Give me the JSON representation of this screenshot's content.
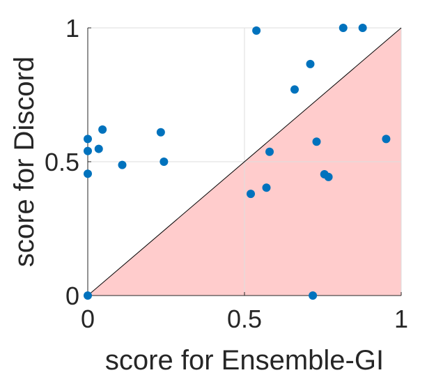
{
  "chart_data": {
    "type": "scatter",
    "xlabel": "score for Ensemble-GI",
    "ylabel": "score for Discord",
    "xlim": [
      0,
      1
    ],
    "ylim": [
      0,
      1
    ],
    "xticks": [
      "0",
      "0.5",
      "1"
    ],
    "yticks": [
      "0",
      "0.5",
      "1"
    ],
    "grid": true,
    "reference_line": "y = x",
    "shaded_region": "below diagonal (x > y)",
    "colors": {
      "points": "#0072BD",
      "shade": "#FFCCCC",
      "diagonal": "#000000",
      "grid": "#DEDEDE",
      "axis": "#262626"
    },
    "points": [
      {
        "x": 0.0,
        "y": 0.0
      },
      {
        "x": 0.0,
        "y": 0.455
      },
      {
        "x": 0.0,
        "y": 0.54
      },
      {
        "x": 0.0,
        "y": 0.585
      },
      {
        "x": 0.035,
        "y": 0.548
      },
      {
        "x": 0.047,
        "y": 0.62
      },
      {
        "x": 0.11,
        "y": 0.488
      },
      {
        "x": 0.233,
        "y": 0.61
      },
      {
        "x": 0.243,
        "y": 0.5
      },
      {
        "x": 0.52,
        "y": 0.38
      },
      {
        "x": 0.538,
        "y": 0.99
      },
      {
        "x": 0.57,
        "y": 0.403
      },
      {
        "x": 0.58,
        "y": 0.537
      },
      {
        "x": 0.66,
        "y": 0.77
      },
      {
        "x": 0.71,
        "y": 0.865
      },
      {
        "x": 0.718,
        "y": 0.0
      },
      {
        "x": 0.73,
        "y": 0.575
      },
      {
        "x": 0.755,
        "y": 0.453
      },
      {
        "x": 0.768,
        "y": 0.443
      },
      {
        "x": 0.815,
        "y": 1.0
      },
      {
        "x": 0.877,
        "y": 1.0
      },
      {
        "x": 0.952,
        "y": 0.585
      }
    ]
  }
}
